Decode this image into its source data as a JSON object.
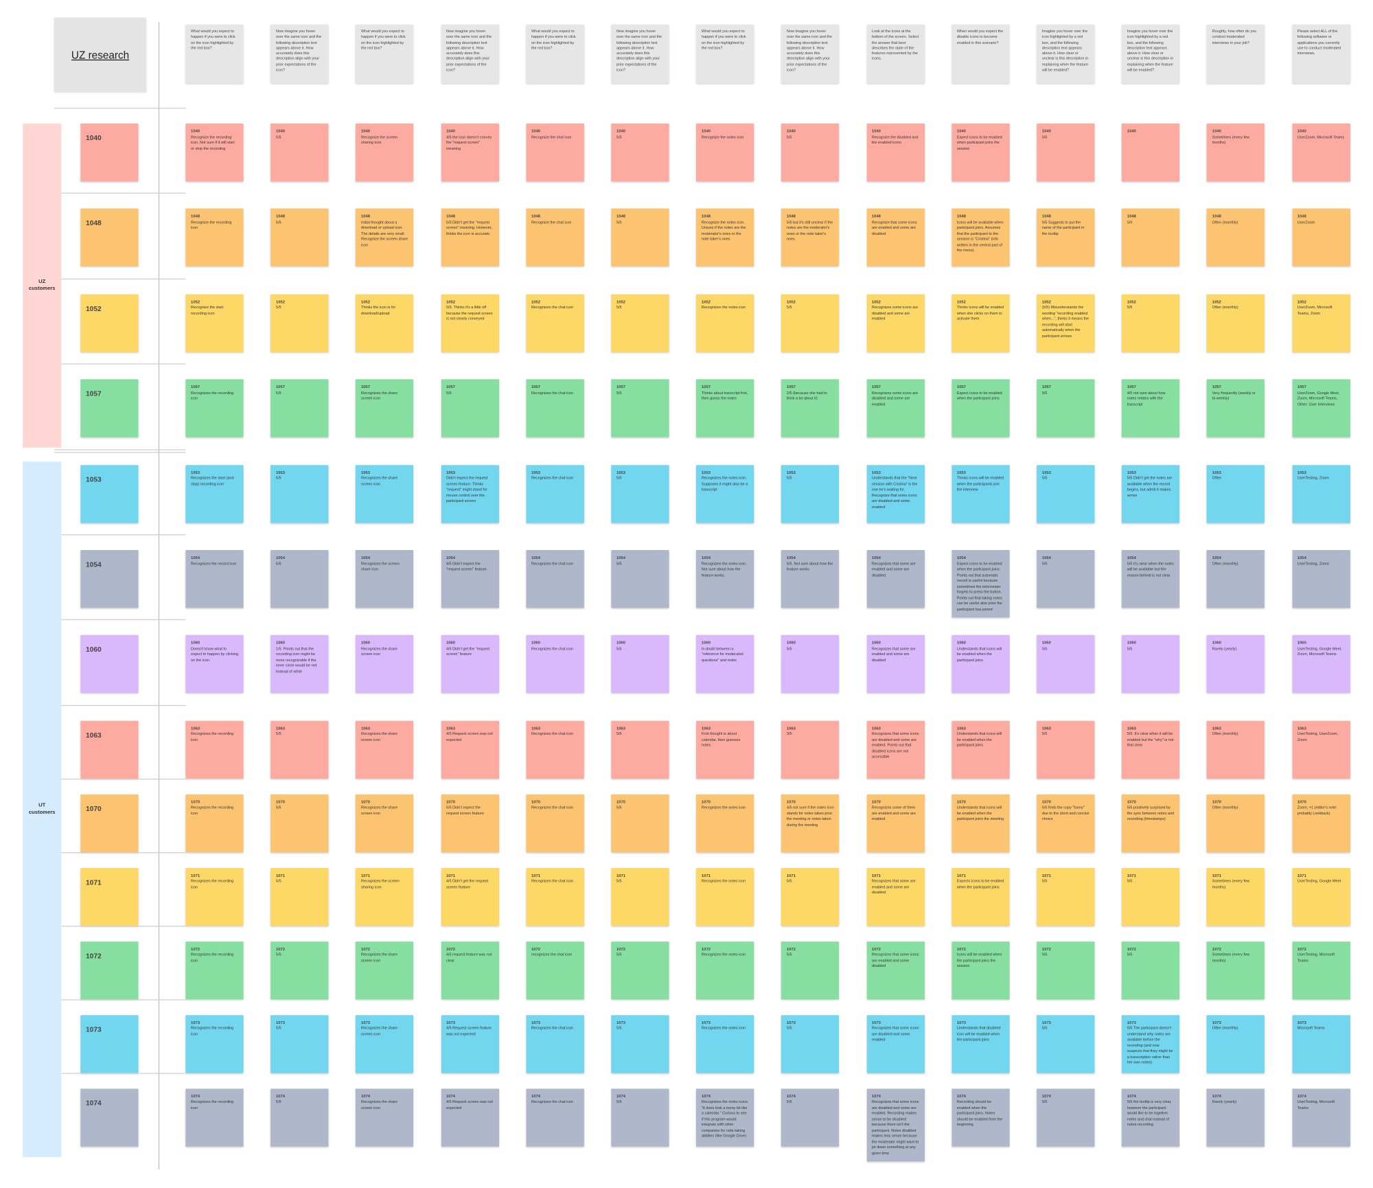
{
  "title": "UZ research",
  "questions": [
    "What would you expect to happen if you were to click on the icon highlighted by the red box?",
    "Now imagine you hover over the same icon and the following description text appears above it. How accurately does this description align with your prior expectations of the icon?",
    "What would you expect to happen if you were to click on the icon highlighted by the red box?",
    "Now imagine you hover over the same icon and the following description text appears above it. How accurately does this description align with your prior expectations of the icon?",
    "What would you expect to happen if you were to click on the icon highlighted by the red box?",
    "Now imagine you hover over the same icon and the following description text appears above it. How accurately does this description align with your prior expectations of the icon?",
    "What would you expect to happen if you were to click on the icon highlighted by the red box?",
    "Now imagine you hover over the same icon and the following description text appears above it. How accurately does this description align with your prior expectations of the icon?",
    "Look at the icons at the bottom of the screen. Select the answer that best describes the state of the features represented by the icons.",
    "When would you expect the disable icons to become enabled in this scenario?",
    "Imagine you hover over the icon highlighted by a red box, and the following description text appears above it. How clear or unclear is this description in explaining when the feature will be enabled?",
    "Imagine you hover over the icon highlighted by a red box, and the following description text appears above it. How clear or unclear is this description in explaining when the feature will be enabled?",
    "Roughly, how often do you conduct moderated interviews in your job?",
    "Please select ALL of the following software or applications you currently use to conduct moderated interviews."
  ],
  "groups": [
    {
      "label": "UZ customers",
      "color": "#ffd6d3",
      "rows": [
        {
          "id": "1040",
          "color": "#fdaba1",
          "notes": [
            "Recognize the recording icon. Not sure if it will start or stop the recording",
            "5/5",
            "Recognize the screen sharing icon",
            "4/5 the icon doesn't convey the \"request screen\" meaning",
            "Recognize the chat icon",
            "5/5",
            "Recognize the notes icon",
            "5/5",
            "Recognize the disabled and the enabled icons",
            "Expect icons to be enabled when participant joins the session",
            "5/5",
            null,
            "Sometimes (every few months)",
            "UserZoom, Microsoft Teams"
          ]
        },
        {
          "id": "1048",
          "color": "#fcc470",
          "notes": [
            "Recognize the recording icon",
            "5/5",
            "Initial thought about a download or upload icon. The details are very small. Recognize the screen share icon",
            "5/5 Didn't get the \"request screen\" meaning. However, thinks the icon is accurate.",
            "Recognize the chat icon",
            "5/5",
            "Recognize the notes icon. Unsure if the notes are the moderator's ones or the note taker's ones",
            "5/5 but it's still unclear if the notes are the moderator's ones or the note taker's ones",
            "Recognize that some icons are enabled and some are disabled",
            "Icons will be available when participant joins. Assumes that the participant to the session is \"Cristina\" (info written in the central part of the menu)",
            "5/5 Suggests to put the name of the participant in the tooltip",
            "5/5",
            "Often (monthly)",
            "UserZoom"
          ]
        },
        {
          "id": "1052",
          "color": "#fdd867",
          "notes": [
            "Recognize the start recording icon",
            "5/5",
            "Thinks the icon is for download/upload",
            "5/5. Thinks it's a little off because the request screen is not clearly conveyed",
            "Recognizes the chat icon",
            "5/5",
            "Recognizes the notes icon",
            "5/5",
            "Recognizes some icons are disabled and some are enabled",
            "Thinks icons will be enabled when she clicks on them to activate them",
            "(5/5) Misunderstands the wording \"recording enabled when...\", thinks it means the recording will start automatically when the participant arrives",
            "5/5",
            "Often (monthly)",
            "UserZoom, Microsoft Teams, Zoom"
          ]
        },
        {
          "id": "1057",
          "color": "#86dfa1",
          "notes": [
            "Recognizes the recording icon",
            "5/5",
            "Recognizes the share screen icon",
            "5/5",
            "Recognizes the chat icon",
            "5/5",
            "Thinks about transcript first, then guess the notes",
            "2/5 (because she had to think a lot about it)",
            "Recognizes some icons are disabled and some are enabled",
            "Expect icons to be enabled when the participant joins",
            "5/5",
            "4/5 not sure about how notes relates with the transcript",
            "Very frequently (weekly or bi-weekly)",
            "UserZoom, Google Meet, Zoom, Microsoft Teams, Other: User Interviews"
          ]
        }
      ]
    },
    {
      "label": "UT customers",
      "color": "#d4ecfd",
      "rows": [
        {
          "id": "1053",
          "color": "#73d6ef",
          "notes": [
            "Recognizes the start (and stop) recording icon",
            "5/5",
            "Recognizes the share screen icon",
            "Didn't expect the request screen feature. Thinks \"request\" might stand for mouse control over the participant screen",
            "Recognizes the chat icon",
            "5/5",
            "Recognizes the notes icon. Supposes it might also be a transcript",
            "5/5",
            "Understands that the \"Next session with Cristina\" is the one he's waiting for. Recognize that some icons are disabled and some enabled",
            "Thinks icons will be enabled when the participants join the interview",
            "5/5",
            "5/5 Didn't get the notes are available when the record begins, but admit it makes sense",
            "Often",
            "UserTesting, Zoom"
          ]
        },
        {
          "id": "1054",
          "color": "#aeb8ca",
          "notes": [
            "Recognizes the record icon",
            "5/5",
            "Recognizes the screen share icon",
            "4/5 Didn't expect the \"request screen\" feature",
            "Recognizes the chat icon",
            "5/5",
            "Recognizes the notes icon. Not sure about how the feature works.",
            "5/5. Not sure about how the feature works.",
            "Recognizes that some are enabled and some are disabled",
            "Expect icons to be enabled when the participant joins. Points out that automatic record is useful because sometimes the interviewer forgets to press the button. Points out that taking notes can be useful also prior the participant has joined",
            "5/5",
            "5/5 It's clear when the notes will be available but the reason behind is not clear",
            "Often (monthly)",
            "UserTesting, Zoom"
          ]
        },
        {
          "id": "1060",
          "color": "#d9b9fb",
          "notes": [
            "Doesn't know what to expect to happen by clicking on the icon",
            "1/5. Points out that the recording icon might be more recognizable if the inner circle would be red instead of white",
            "Recognizes the share screen icon",
            "4/5 Didn't get the \"request screen\" feature",
            "Recognizes the chat icon",
            "5/5",
            "In doubt between a \"reference for moderated questions\" and notes",
            "5/5",
            "Recognizes that some are enabled and some are disabled",
            "Understands that icons will be enabled when the participant joins",
            "5/5",
            "5/5",
            "Rarely (yearly)",
            "UserTesting, Google Meet, Zoom, Microsoft Teams"
          ]
        },
        {
          "id": "1063",
          "color": "#fdaba1",
          "notes": [
            "Recognizes the recording icon",
            "5/5",
            "Recognizes the share screen icon",
            "4/5 Request screen was not expected",
            "Recognizes the chat icon",
            "5/5",
            "First thought is about calendar, then guesses notes",
            "3/5",
            "Recognizes that some icons are disabled and some are enabled. Points out that disabled icons are not accessible",
            "Understands that icons will be enabled when the participant joins",
            "5/5",
            "5/5. It's clear when it will be enabled but the \"why\" is not that clear",
            "Often (monthly)",
            "UserTesting, UserZoom, Zoom"
          ]
        },
        {
          "id": "1070",
          "color": "#fcc470",
          "notes": [
            "Recognizes the recording icon",
            "5/5",
            "Recognizes the share screen icon",
            "5/5 Didn't expect the request screen feature",
            "Recognizes the chat icon",
            "5/5",
            "Recognizes the notes icon",
            "4/5 not sure if the notes icon stands for notes taken prior the meeting or notes taken during the meeting",
            "Recognizes some of them are enabled and some are enabled",
            "Understands that icons will be enabled when the participant joins the meeting",
            "5/5 finds the copy \"funny\" due to the short and concise choice",
            "5/5 positively surprised by the sync between notes and recording (timestamps)",
            "Often (monthly)",
            "Zoom, +1 (editor's note: probably Lookback)"
          ]
        },
        {
          "id": "1071",
          "color": "#fdd867",
          "notes": [
            "Recognizes the recording icon",
            "5/5",
            "Recognizes the screen sharing icon",
            "4/5 Didn't get the request screen feature",
            "Recognizes the chat icon",
            "5/5",
            "Recognizes the notes icon",
            "5/5",
            "Recognizes that some are enabled and some are disabled",
            "Expects icons to be enabled when the participant joins",
            "5/5",
            "5/5",
            "Sometimes (every few months)",
            "UserTesting, Google Meet"
          ]
        },
        {
          "id": "1072",
          "color": "#86dfa1",
          "notes": [
            "Recognizes the recording icon",
            "5/5",
            "Recognizes the share screen icon",
            "4/5 request feature was not clear",
            "recognizes the chat icon",
            "5/5",
            "Recognizes the notes icon",
            "5/5",
            "Recognizes that some icons are enabled and some disabled",
            "Icons will be enabled when the participant joins the session",
            "5/5",
            "5/5",
            "Sometimes (every few months)",
            "UserTesting, Microsoft Teams"
          ]
        },
        {
          "id": "1073",
          "color": "#73d6ef",
          "notes": [
            "Recognizes the recording icon",
            "5/5",
            "Recognizes the share screen icon",
            "4/5 Request screen feature was not expected",
            "Recognizes the chat icon",
            "5/5",
            "Recognizes the notes icon",
            "5/5",
            "Recognizes that some icons are disabled and some enabled",
            "Understands that disabled icon will be enabled when the participant joins",
            "5/5",
            "5/5 The participant doesn't understand why notes are available before the recording (and now suspects that they might be a transcription rather than her own notes)",
            "Often (monthly)",
            "Microsoft Teams"
          ]
        },
        {
          "id": "1074",
          "color": "#aeb8ca",
          "notes": [
            "Recognizes the recording icon",
            "5/5",
            "Recognizes the share screen icon",
            "4/5 Request screen was not expected",
            "Recognizes the chat icon",
            "5/5",
            "Recognizes the notes icons. \"It does look a teeny bit like a calendar.\" Curious to see if this program would integrate with other companies for note-taking abilities (like Google Drive)",
            "5/5",
            "Recognizes that some icons are disabled and some are enabled. Recording makes sense to be disabled because there isn't the participant. Notes disabled makes less sense because the moderator might want to jot down something at any given time",
            "Recording should be enabled when the participant joins. Notes should be enabled from the beginning",
            "5/5",
            "5/5 the tooltip is very clear, however the participant would like to be together notes and chat instead of notes-recording",
            "Rarely (yearly)",
            "UserTesting, Microsoft Teams"
          ]
        }
      ]
    }
  ]
}
